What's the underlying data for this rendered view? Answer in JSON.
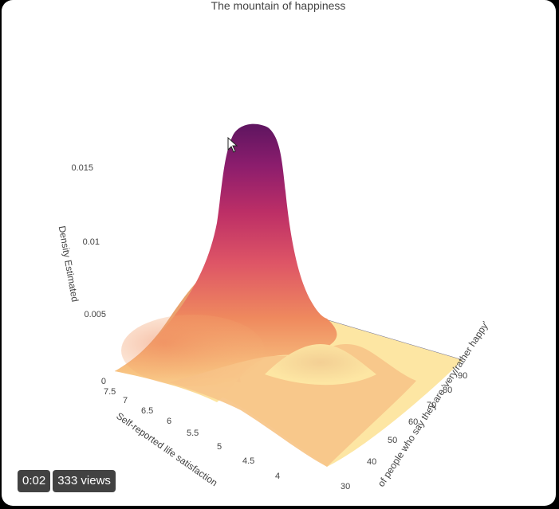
{
  "video_overlay": {
    "time": "0:02",
    "views": "333 views"
  },
  "colors": {
    "colorscale": [
      "#fde6a3",
      "#f7bf7e",
      "#ef8a5e",
      "#de5566",
      "#bd2f66",
      "#8c1d6d",
      "#5e1560"
    ],
    "pointer": "#222222"
  },
  "chart_data": {
    "type": "surface",
    "title": "The mountain of happiness",
    "zlabel": "Density Estimated",
    "xlabel": "Self-reported life satisfaction",
    "ylabel": "Share of people who say they are 'very/rather happy'",
    "ylabel_visible": "of people who say they are 'very/rather happy'",
    "zlim": [
      0,
      0.017
    ],
    "z_ticks": [
      "0",
      "0.005",
      "0.01",
      "0.015"
    ],
    "x_ticks": [
      "7.5",
      "7",
      "6.5",
      "6",
      "5.5",
      "5",
      "4.5",
      "4"
    ],
    "y_ticks": [
      "30",
      "40",
      "50",
      "60",
      "70",
      "80",
      "90"
    ],
    "peaks": [
      {
        "x": 6.3,
        "y": 87,
        "z": 0.0175
      },
      {
        "x": 5.1,
        "y": 62,
        "z": 0.003
      }
    ]
  }
}
